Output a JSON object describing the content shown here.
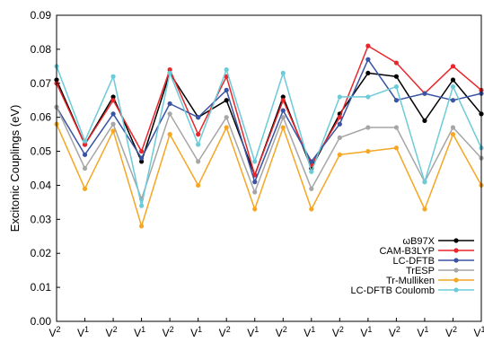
{
  "chart_data": {
    "type": "line",
    "ylabel": "Excitonic Couplings (eV)",
    "xlabel": "",
    "ylim": [
      0,
      0.09
    ],
    "yticks": [
      "0.00",
      "0.01",
      "0.02",
      "0.03",
      "0.04",
      "0.05",
      "0.06",
      "0.07",
      "0.08",
      "0.09"
    ],
    "categories": [
      {
        "base": "V",
        "sup": "2"
      },
      {
        "base": "V",
        "sup": "1"
      },
      {
        "base": "V",
        "sup": "2"
      },
      {
        "base": "V",
        "sup": "1"
      },
      {
        "base": "V",
        "sup": "2"
      },
      {
        "base": "V",
        "sup": "1"
      },
      {
        "base": "V",
        "sup": "2"
      },
      {
        "base": "V",
        "sup": "1"
      },
      {
        "base": "V",
        "sup": "2"
      },
      {
        "base": "V",
        "sup": "1"
      },
      {
        "base": "V",
        "sup": "2"
      },
      {
        "base": "V",
        "sup": "1"
      },
      {
        "base": "V",
        "sup": "2"
      },
      {
        "base": "V",
        "sup": "1"
      },
      {
        "base": "V",
        "sup": "2"
      },
      {
        "base": "V",
        "sup": "1"
      }
    ],
    "grid": false,
    "legend_position": "bottom-right",
    "series": [
      {
        "name": "ωB97X",
        "color": "#000000",
        "values": [
          0.071,
          0.052,
          0.066,
          0.047,
          0.073,
          0.06,
          0.065,
          0.043,
          0.066,
          0.045,
          0.061,
          0.073,
          0.072,
          0.059,
          0.071,
          0.061
        ]
      },
      {
        "name": "CAM-B3LYP",
        "color": "#e8262b",
        "values": [
          0.07,
          0.052,
          0.065,
          0.05,
          0.074,
          0.055,
          0.072,
          0.043,
          0.065,
          0.046,
          0.06,
          0.081,
          0.076,
          0.067,
          0.075,
          0.068
        ]
      },
      {
        "name": "LC-DFTB",
        "color": "#3a54a4",
        "values": [
          0.063,
          0.049,
          0.061,
          0.048,
          0.064,
          0.06,
          0.068,
          0.041,
          0.062,
          0.047,
          0.058,
          0.077,
          0.065,
          0.067,
          0.065,
          0.067
        ]
      },
      {
        "name": "TrESP",
        "color": "#a6a6a6",
        "values": [
          0.063,
          0.045,
          0.058,
          0.036,
          0.061,
          0.047,
          0.06,
          0.038,
          0.06,
          0.039,
          0.054,
          0.057,
          0.057,
          0.041,
          0.057,
          0.048
        ]
      },
      {
        "name": "Tr-Mulliken",
        "color": "#f5a623",
        "values": [
          0.058,
          0.039,
          0.056,
          0.028,
          0.055,
          0.04,
          0.057,
          0.033,
          0.057,
          0.033,
          0.049,
          0.05,
          0.051,
          0.033,
          0.055,
          0.04
        ]
      },
      {
        "name": "LC-DFTB Coulomb",
        "color": "#6ccbd8",
        "values": [
          0.075,
          0.053,
          0.072,
          0.034,
          0.073,
          0.052,
          0.074,
          0.047,
          0.073,
          0.044,
          0.066,
          0.066,
          0.069,
          0.041,
          0.069,
          0.051
        ]
      }
    ]
  }
}
